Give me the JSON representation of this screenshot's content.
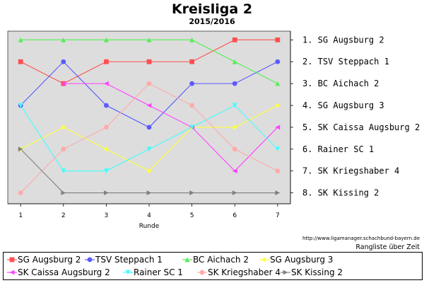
{
  "title": "Kreisliga 2",
  "subtitle": "2015/2016",
  "source_url": "http://www.ligamanager.schachbund-bayern.de",
  "caption": "Rangliste über Zeit",
  "chart_data": {
    "type": "line",
    "title": "Kreisliga 2",
    "subtitle": "2015/2016",
    "xlabel": "Runde",
    "ylabel": "",
    "x": [
      1,
      2,
      3,
      4,
      5,
      6,
      7
    ],
    "xlim": [
      0.7,
      7.3
    ],
    "ylim": [
      8.5,
      0.6
    ],
    "y_inverted": true,
    "grid": false,
    "legend_position": "bottom",
    "rank_labels": [
      "1. SG Augsburg 2",
      "2. TSV Steppach 1",
      "3. BC Aichach 2",
      "4. SG Augsburg 3",
      "5. SK Caissa Augsburg 2",
      "6. Rainer SC 1",
      "7. SK Kriegshaber 4",
      "8. SK Kissing 2"
    ],
    "series": [
      {
        "name": "SG Augsburg 2",
        "color": "#ff5050",
        "marker": "square",
        "values": [
          2,
          3,
          2,
          2,
          2,
          1,
          1
        ]
      },
      {
        "name": "TSV Steppach 1",
        "color": "#5a5aff",
        "marker": "circle",
        "values": [
          4,
          2,
          4,
          5,
          3,
          3,
          2
        ]
      },
      {
        "name": "BC Aichach 2",
        "color": "#55ee55",
        "marker": "triangle-up",
        "values": [
          1,
          1,
          1,
          1,
          1,
          2,
          3
        ]
      },
      {
        "name": "SG Augsburg 3",
        "color": "#ffff40",
        "marker": "diamond",
        "values": [
          6,
          5,
          6,
          7,
          5,
          5,
          4
        ]
      },
      {
        "name": "SK Caissa Augsburg 2",
        "color": "#ff40ff",
        "marker": "triangle-left",
        "values": [
          null,
          3,
          3,
          4,
          5,
          7,
          5
        ]
      },
      {
        "name": "Rainer SC 1",
        "color": "#40ffff",
        "marker": "triangle-down",
        "values": [
          4,
          7,
          7,
          6,
          5,
          4,
          6
        ]
      },
      {
        "name": "SK Kriegshaber 4",
        "color": "#ffaaaa",
        "marker": "circle",
        "values": [
          8,
          6,
          5,
          3,
          4,
          6,
          7
        ]
      },
      {
        "name": "SK Kissing 2",
        "color": "#808080",
        "marker": "triangle-right",
        "values": [
          6,
          8,
          8,
          8,
          8,
          8,
          8
        ]
      }
    ]
  }
}
